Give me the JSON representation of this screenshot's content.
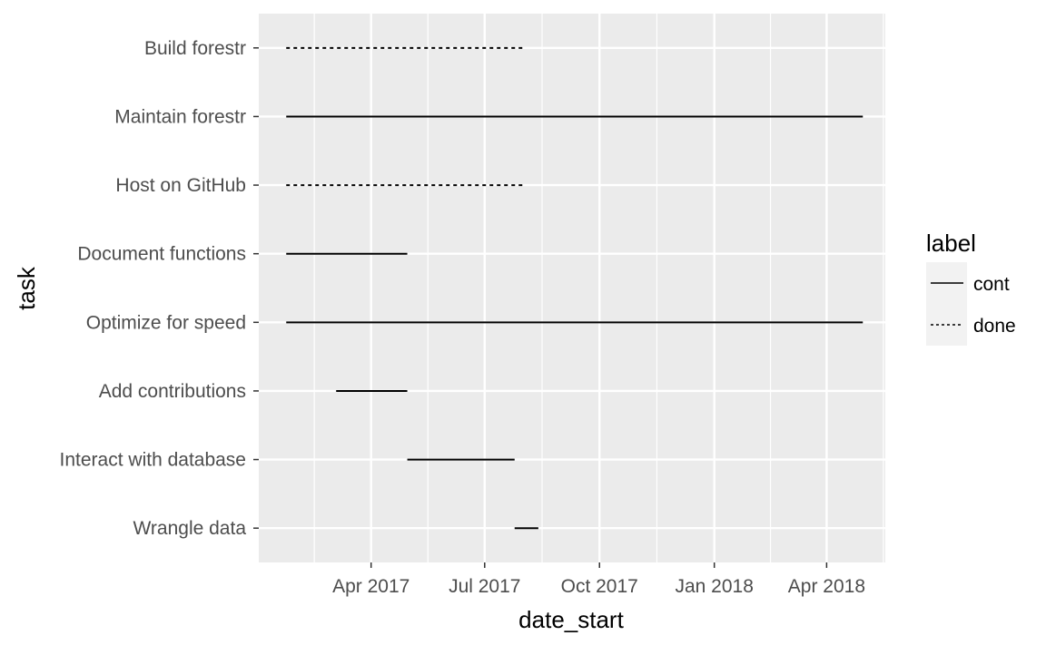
{
  "chart_data": {
    "type": "gantt",
    "xlabel": "date_start",
    "ylabel": "task",
    "xlim": [
      "2017-01-01",
      "2018-05-18"
    ],
    "x_ticks": [
      {
        "date": "2017-04-01",
        "label": "Apr 2017"
      },
      {
        "date": "2017-07-01",
        "label": "Jul 2017"
      },
      {
        "date": "2017-10-01",
        "label": "Oct 2017"
      },
      {
        "date": "2018-01-01",
        "label": "Jan 2018"
      },
      {
        "date": "2018-04-01",
        "label": "Apr 2018"
      }
    ],
    "categories": [
      "Build forestr",
      "Maintain forestr",
      "Host on GitHub",
      "Document functions",
      "Optimize for speed",
      "Add contributions",
      "Interact with database",
      "Wrangle data"
    ],
    "tasks": [
      {
        "task": "Build forestr",
        "start": "2017-01-23",
        "end": "2017-08-01",
        "label": "done"
      },
      {
        "task": "Maintain forestr",
        "start": "2017-01-23",
        "end": "2018-04-30",
        "label": "cont"
      },
      {
        "task": "Host on GitHub",
        "start": "2017-01-23",
        "end": "2017-08-01",
        "label": "done"
      },
      {
        "task": "Document functions",
        "start": "2017-01-23",
        "end": "2017-04-30",
        "label": "cont"
      },
      {
        "task": "Optimize for speed",
        "start": "2017-01-23",
        "end": "2018-04-30",
        "label": "cont"
      },
      {
        "task": "Add contributions",
        "start": "2017-03-04",
        "end": "2017-04-30",
        "label": "cont"
      },
      {
        "task": "Interact with database",
        "start": "2017-04-30",
        "end": "2017-07-25",
        "label": "cont"
      },
      {
        "task": "Wrangle data",
        "start": "2017-07-25",
        "end": "2017-08-13",
        "label": "cont"
      }
    ],
    "legend": {
      "title": "label",
      "position": "right",
      "entries": [
        {
          "name": "cont",
          "line": "solid"
        },
        {
          "name": "done",
          "line": "dotted"
        }
      ]
    },
    "grid": true,
    "colors": {
      "panel_background": "#ebebeb",
      "grid_major": "#ffffff",
      "line": "#000000",
      "tick_label": "#4d4d4d"
    }
  }
}
